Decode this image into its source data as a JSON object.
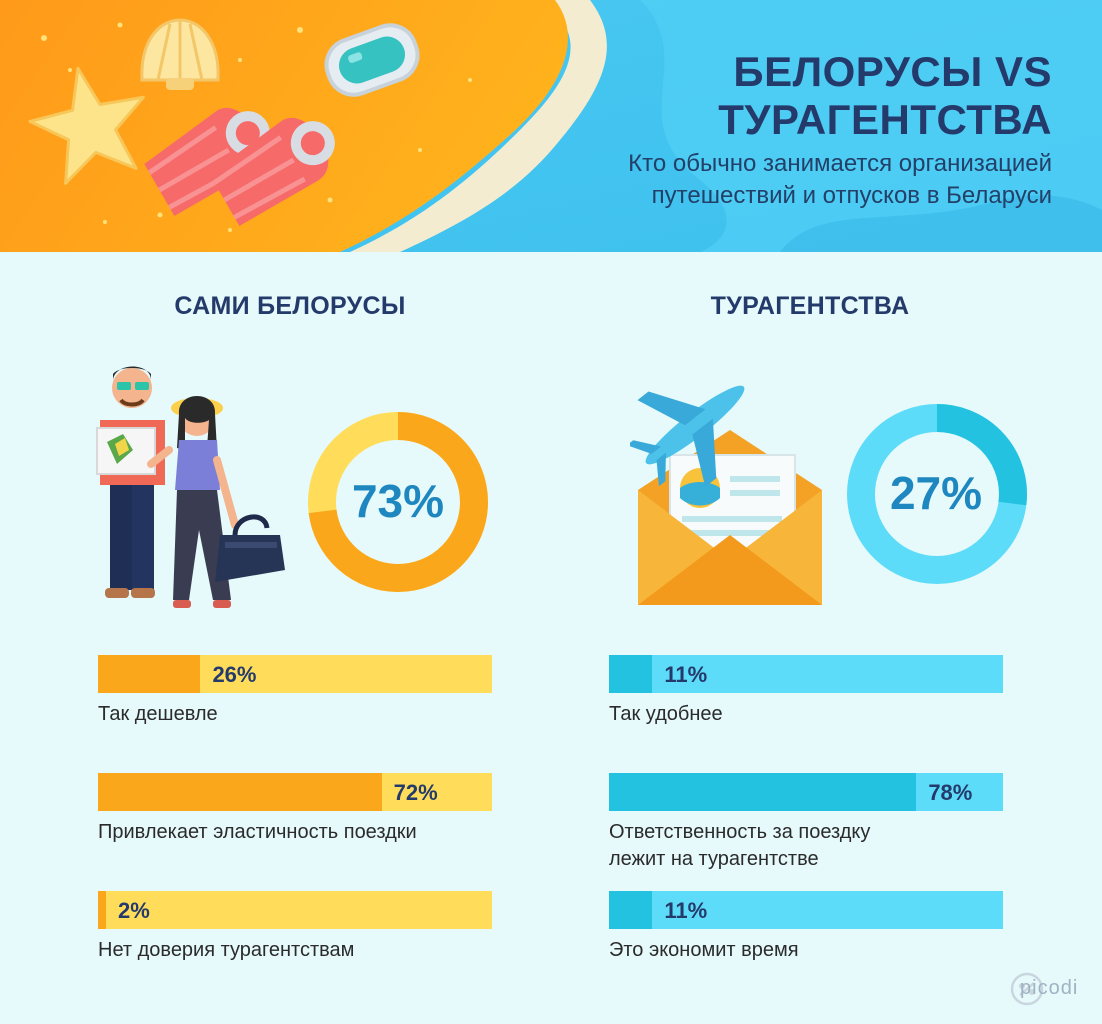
{
  "header": {
    "title_line1": "БЕЛОРУСЫ VS",
    "title_line2": "ТУРАГЕНТСТВА",
    "subtitle_line1": "Кто обычно занимается организацией",
    "subtitle_line2": "путешествий и отпусков в Беларуси"
  },
  "colors": {
    "orange": "#fba71b",
    "yellow": "#ffdd5a",
    "cyan": "#23c2e0",
    "light_cyan": "#5ddcfa",
    "navy": "#243a6b"
  },
  "chart_data": [
    {
      "type": "pie",
      "title": "САМИ БЕЛОРУСЫ",
      "values": [
        73,
        27
      ],
      "label": "73%"
    },
    {
      "type": "pie",
      "title": "ТУРАГЕНТСТВА",
      "values": [
        27,
        73
      ],
      "label": "27%"
    },
    {
      "type": "bar",
      "title": "САМИ БЕЛОРУСЫ",
      "categories": [
        "Так дешевле",
        "Привлекает эластичность поездки",
        "Нет доверия турагентствам"
      ],
      "values": [
        26,
        72,
        2
      ],
      "labels": [
        "26%",
        "72%",
        "2%"
      ],
      "ylim": [
        0,
        100
      ]
    },
    {
      "type": "bar",
      "title": "ТУРАГЕНТСТВА",
      "categories": [
        "Так удобнее",
        "Ответственность за поездку лежит на турагентстве",
        "Это экономит время"
      ],
      "caption_lines": [
        [
          "Так удобнее"
        ],
        [
          "Ответственность за поездку",
          "лежит на турагентстве"
        ],
        [
          "Это экономит время"
        ]
      ],
      "values": [
        11,
        78,
        11
      ],
      "labels": [
        "11%",
        "78%",
        "11%"
      ],
      "ylim": [
        0,
        100
      ]
    }
  ],
  "logo": {
    "text": "picodi"
  }
}
